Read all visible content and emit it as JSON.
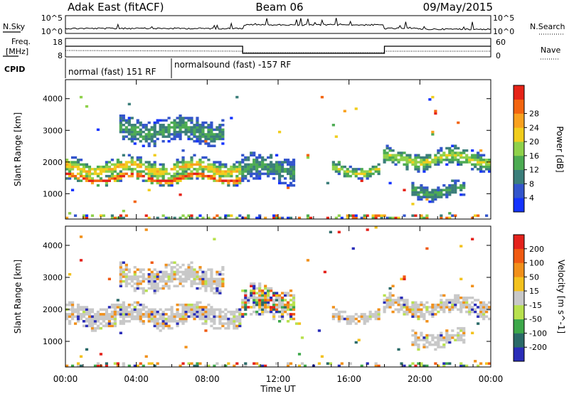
{
  "header": {
    "title": "Adak East (fitACF)",
    "beam": "Beam 06",
    "date": "09/May/2015"
  },
  "aux_panels": {
    "nsky_label": "N.Sky",
    "nsky_ticks": [
      "10^5",
      "10^0"
    ],
    "nsearch_label": "N.Search",
    "nsearch_ticks": [
      "10^5",
      "10^0"
    ],
    "freq_label_line1": "Freq.",
    "freq_label_line2": "[MHz]",
    "freq_ticks": [
      "18",
      "8"
    ],
    "nave_label": "Nave",
    "nave_ticks": [
      "60",
      "0"
    ],
    "cpid_label": "CPID",
    "cpid_segments": [
      {
        "text": "normal (fast) 151 RF",
        "start_hour": 0,
        "end_hour": 6
      },
      {
        "text": "normalsound (fast) -157 RF",
        "start_hour": 6,
        "end_hour": 24
      }
    ]
  },
  "x_axis": {
    "label": "Time UT",
    "ticks": [
      "00:00",
      "04:00",
      "08:00",
      "12:00",
      "16:00",
      "20:00",
      "00:00"
    ]
  },
  "chart_data": [
    {
      "type": "heatmap",
      "name": "Power",
      "ylabel": "Slant Range [km]",
      "yticks": [
        1000,
        2000,
        3000,
        4000
      ],
      "ylim": [
        200,
        4600
      ],
      "xlim_hours": [
        0,
        24
      ],
      "colorbar": {
        "label": "Power [dB]",
        "ticks": [
          4,
          8,
          12,
          16,
          20,
          24,
          28
        ],
        "colors": [
          "#1433ff",
          "#3355cc",
          "#3b7e7a",
          "#4cab52",
          "#8fd14a",
          "#f1cd1c",
          "#f9a11e",
          "#f3650f",
          "#e62317"
        ]
      },
      "bands": [
        {
          "hour_start": 0.0,
          "hour_end": 9.9,
          "range_center": 1800,
          "range_halfwidth": 300,
          "intensity": "high"
        },
        {
          "hour_start": 0.0,
          "hour_end": 9.9,
          "range_center": 1500,
          "range_halfwidth": 150,
          "intensity": "max"
        },
        {
          "hour_start": 3.0,
          "hour_end": 9.0,
          "range_center": 3000,
          "range_halfwidth": 400,
          "intensity": "low"
        },
        {
          "hour_start": 10.0,
          "hour_end": 13.0,
          "range_center": 1800,
          "range_halfwidth": 450,
          "intensity": "low"
        },
        {
          "hour_start": 15.0,
          "hour_end": 17.8,
          "range_center": 1750,
          "range_halfwidth": 200,
          "intensity": "mid"
        },
        {
          "hour_start": 18.0,
          "hour_end": 24.0,
          "range_center": 2100,
          "range_halfwidth": 300,
          "intensity": "mid"
        },
        {
          "hour_start": 19.5,
          "hour_end": 22.5,
          "range_center": 1100,
          "range_halfwidth": 250,
          "intensity": "low"
        }
      ]
    },
    {
      "type": "heatmap",
      "name": "Velocity",
      "ylabel": "Slant Range [km]",
      "yticks": [
        1000,
        2000,
        3000,
        4000
      ],
      "ylim": [
        200,
        4600
      ],
      "xlim_hours": [
        0,
        24
      ],
      "colorbar": {
        "label": "Velocity [m s^-1]",
        "ticks": [
          200,
          100,
          50,
          15,
          -15,
          -50,
          -100,
          -200
        ],
        "colors": [
          "#2a2db8",
          "#2a6a68",
          "#3da84a",
          "#b8e14e",
          "#c8c8c8",
          "#f3c21e",
          "#f1901a",
          "#f05a12",
          "#e4221c"
        ]
      },
      "bands": [
        {
          "hour_start": 0.0,
          "hour_end": 9.9,
          "range_center": 1800,
          "range_halfwidth": 350,
          "intensity": "ground"
        },
        {
          "hour_start": 3.0,
          "hour_end": 9.0,
          "range_center": 3000,
          "range_halfwidth": 400,
          "intensity": "ground"
        },
        {
          "hour_start": 10.0,
          "hour_end": 13.0,
          "range_center": 2200,
          "range_halfwidth": 500,
          "intensity": "mixed"
        },
        {
          "hour_start": 15.0,
          "hour_end": 17.8,
          "range_center": 1800,
          "range_halfwidth": 200,
          "intensity": "ground"
        },
        {
          "hour_start": 18.0,
          "hour_end": 24.0,
          "range_center": 2100,
          "range_halfwidth": 300,
          "intensity": "ground"
        },
        {
          "hour_start": 19.5,
          "hour_end": 22.5,
          "range_center": 1100,
          "range_halfwidth": 250,
          "intensity": "ground"
        }
      ]
    }
  ]
}
